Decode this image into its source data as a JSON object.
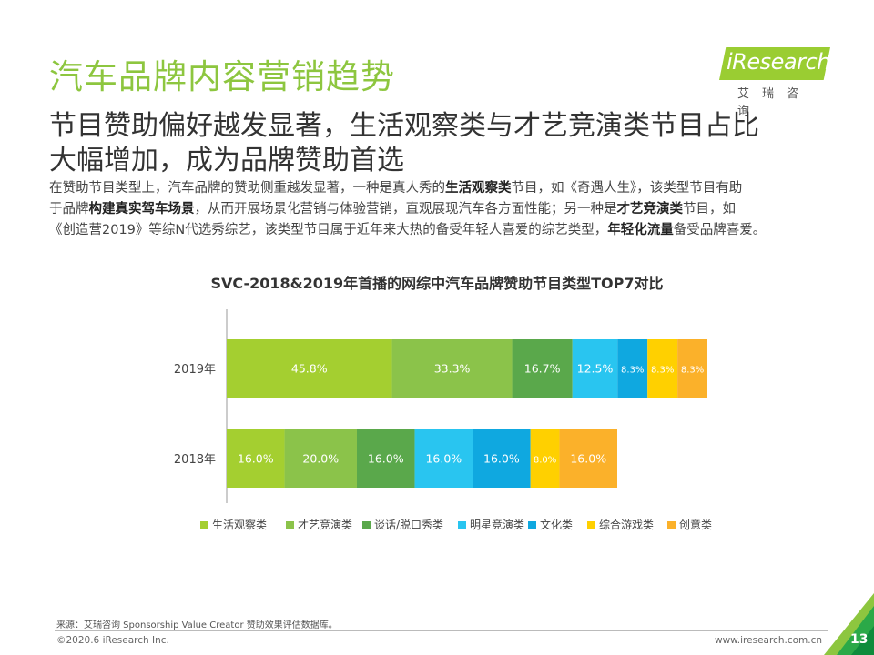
{
  "header": {
    "title": "汽车品牌内容营销趋势",
    "logo_text": "iResearch",
    "logo_cn": "艾瑞咨询",
    "subtitle_line1": "节目赞助偏好越发显著，生活观察类与才艺竞演类节目占比",
    "subtitle_line2": "大幅增加，成为品牌赞助首选"
  },
  "description": {
    "line1_a": "在赞助节目类型上，汽车品牌的赞助侧重越发显著，一种是真人秀的",
    "line1_b": "生活观察类",
    "line1_c": "节目，如《奇遇人生》，该类型节目有助",
    "line2_a": "于品牌",
    "line2_b": "构建真实驾车场景",
    "line2_c": "，从而开展场景化营销与体验营销，直观展现汽车各方面性能；另一种是",
    "line2_d": "才艺竞演类",
    "line2_e": "节目，如",
    "line3_a": "《创造营2019》等综N代选秀综艺，该类型节目属于近年来大热的备受年轻人喜爱的综艺类型，",
    "line3_b": "年轻化流量",
    "line3_c": "备受品牌喜爱。"
  },
  "chart_data": {
    "type": "bar",
    "orientation": "horizontal",
    "stacked": true,
    "title": "SVC-2018&2019年首播的网综中汽车品牌赞助节目类型TOP7对比",
    "categories": [
      "2019年",
      "2018年"
    ],
    "series": [
      {
        "name": "生活观察类",
        "color": "#a4cf30",
        "values": [
          45.8,
          16.0
        ],
        "labels": [
          "45.8%",
          "16.0%"
        ]
      },
      {
        "name": "才艺竞演类",
        "color": "#8bc34a",
        "values": [
          33.3,
          20.0
        ],
        "labels": [
          "33.3%",
          "20.0%"
        ]
      },
      {
        "name": "谈话/脱口秀类",
        "color": "#5aa84b",
        "values": [
          16.7,
          16.0
        ],
        "labels": [
          "16.7%",
          "16.0%"
        ]
      },
      {
        "name": "明星竞演类",
        "color": "#29c5f0",
        "values": [
          12.5,
          16.0
        ],
        "labels": [
          "12.5%",
          "16.0%"
        ]
      },
      {
        "name": "文化类",
        "color": "#0fa8e0",
        "values": [
          8.3,
          16.0
        ],
        "labels": [
          "8.3%",
          "16.0%"
        ]
      },
      {
        "name": "综合游戏类",
        "color": "#ffd000",
        "values": [
          8.3,
          8.0
        ],
        "labels": [
          "8.3%",
          "8.0%"
        ]
      },
      {
        "name": "创意类",
        "color": "#fbb12a",
        "values": [
          8.3,
          16.0
        ],
        "labels": [
          "8.3%",
          "16.0%"
        ]
      }
    ],
    "legend_position": "bottom",
    "grid": false
  },
  "footer": {
    "source": "来源：艾瑞咨询 Sponsorship Value Creator 赞助效果评估数据库。",
    "copyright": "©2020.6 iResearch Inc.",
    "url": "www.iresearch.com.cn",
    "page": "13"
  }
}
